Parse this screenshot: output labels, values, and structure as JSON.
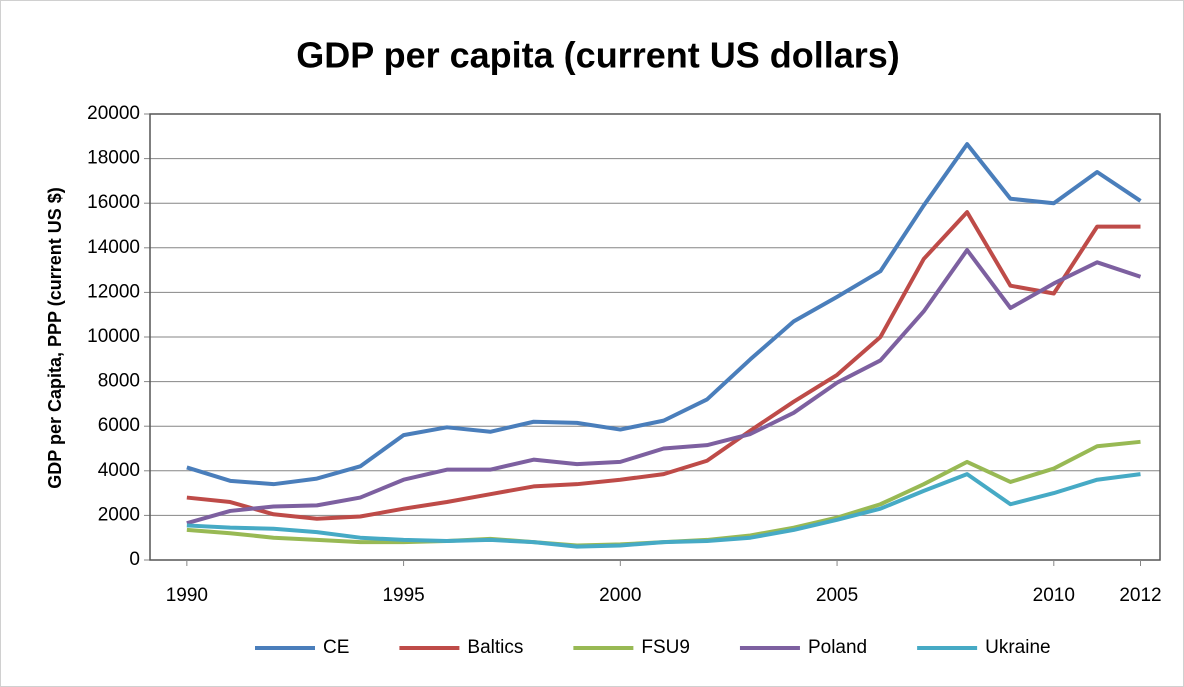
{
  "chart_data": {
    "type": "line",
    "title": "GDP per capita (current US dollars)",
    "y_label": "GDP per Capita, PPP (current US $)",
    "x": [
      1990,
      1991,
      1992,
      1993,
      1994,
      1995,
      1996,
      1997,
      1998,
      1999,
      2000,
      2001,
      2002,
      2003,
      2004,
      2005,
      2006,
      2007,
      2008,
      2009,
      2010,
      2011,
      2012
    ],
    "xlim": [
      1989.15,
      2012.45
    ],
    "xticks": [
      1990,
      1995,
      2000,
      2005,
      2010,
      2012
    ],
    "ylim": [
      0,
      20000
    ],
    "yticks": [
      0,
      2000,
      4000,
      6000,
      8000,
      10000,
      12000,
      14000,
      16000,
      18000,
      20000
    ],
    "grid": true,
    "legend": "bottom",
    "series": [
      {
        "name": "CE",
        "color": "#4a7ebb",
        "values": [
          4150,
          3550,
          3400,
          3650,
          4200,
          5600,
          5950,
          5750,
          6200,
          6150,
          5850,
          6250,
          7200,
          9000,
          10700,
          11800,
          12950,
          15900,
          18650,
          16200,
          16000,
          17400,
          16100
        ]
      },
      {
        "name": "Baltics",
        "color": "#be4b48",
        "values": [
          2800,
          2600,
          2050,
          1850,
          1950,
          2300,
          2600,
          2950,
          3300,
          3400,
          3600,
          3850,
          4450,
          5800,
          7100,
          8300,
          10000,
          13500,
          15600,
          12300,
          11950,
          14950,
          14950
        ]
      },
      {
        "name": "FSU9",
        "color": "#98b954",
        "values": [
          1350,
          1200,
          1000,
          900,
          800,
          800,
          850,
          950,
          800,
          650,
          700,
          800,
          900,
          1100,
          1450,
          1900,
          2500,
          3400,
          4400,
          3500,
          4100,
          5100,
          5300
        ]
      },
      {
        "name": "Poland",
        "color": "#7d60a0",
        "values": [
          1650,
          2200,
          2400,
          2450,
          2800,
          3600,
          4050,
          4050,
          4500,
          4300,
          4400,
          5000,
          5150,
          5650,
          6600,
          7950,
          8950,
          11150,
          13900,
          11300,
          12400,
          13350,
          12700
        ]
      },
      {
        "name": "Ukraine",
        "color": "#46aac5",
        "values": [
          1550,
          1450,
          1400,
          1250,
          1000,
          900,
          850,
          900,
          800,
          600,
          650,
          800,
          850,
          1000,
          1350,
          1800,
          2300,
          3100,
          3850,
          2500,
          3000,
          3600,
          3850
        ]
      }
    ]
  }
}
